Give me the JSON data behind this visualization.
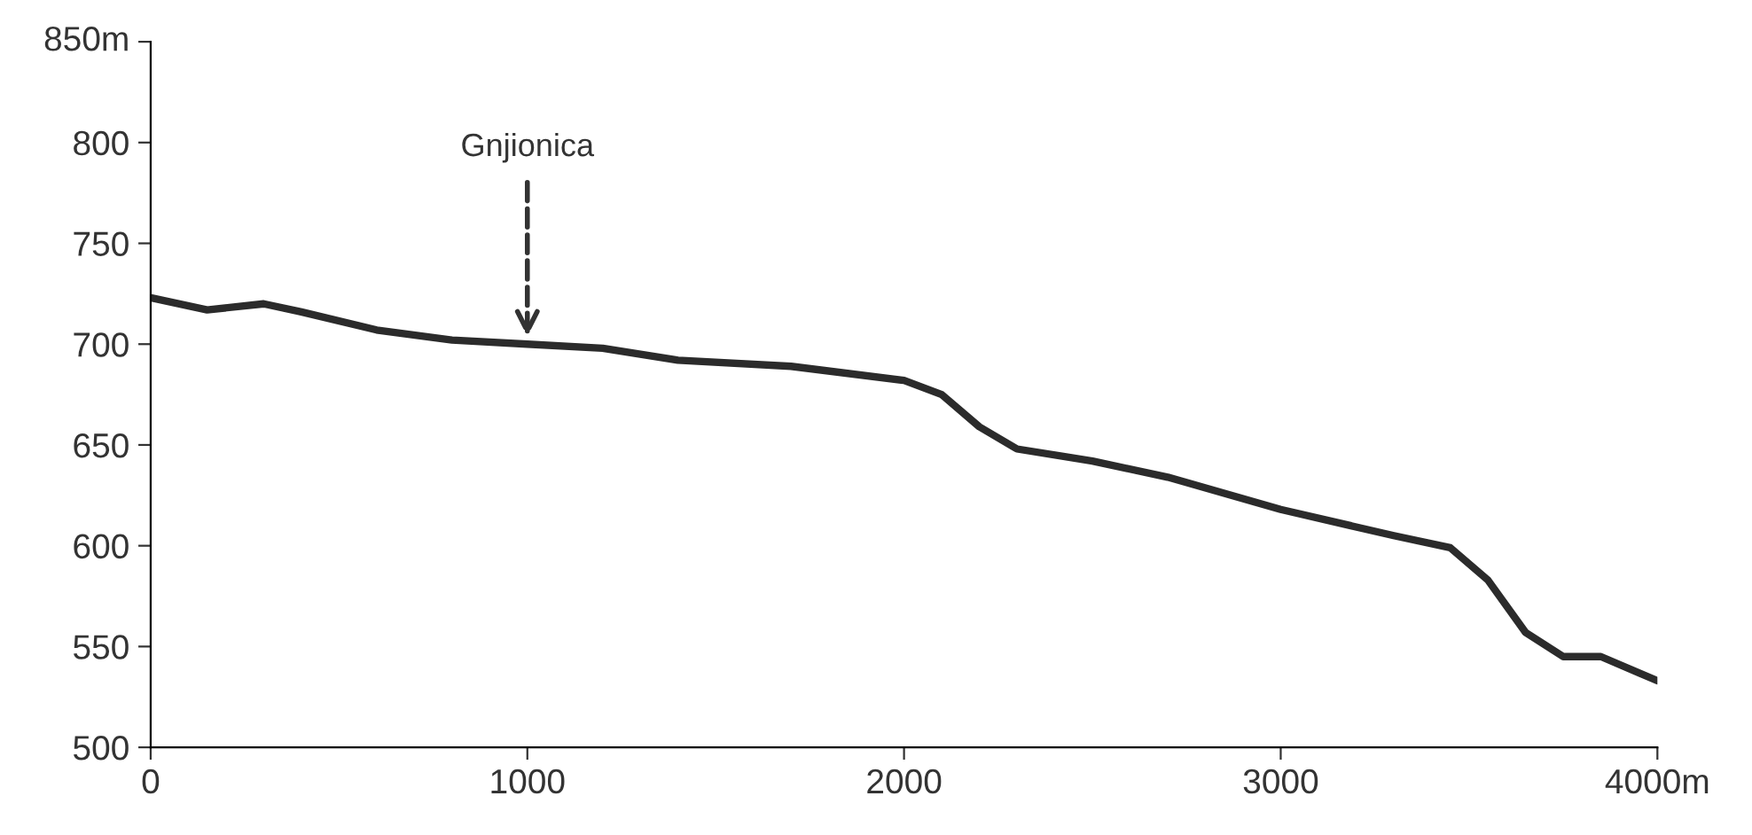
{
  "chart_data": {
    "type": "line",
    "x": [
      0,
      150,
      300,
      400,
      600,
      800,
      1000,
      1200,
      1400,
      1700,
      2000,
      2100,
      2200,
      2300,
      2500,
      2700,
      3000,
      3300,
      3450,
      3550,
      3650,
      3750,
      3850,
      4000
    ],
    "series": [
      {
        "color": "#2b2b2b",
        "values": [
          723,
          717,
          720,
          716,
          707,
          702,
          700,
          698,
          692,
          689,
          682,
          675,
          659,
          648,
          642,
          634,
          618,
          605,
          599,
          583,
          557,
          545,
          545,
          533
        ]
      }
    ],
    "xlim": [
      0,
      4000
    ],
    "ylim": [
      500,
      850
    ],
    "xticks": [
      0,
      1000,
      2000,
      3000,
      {
        "value": 4000,
        "label": "4000m"
      }
    ],
    "yticks": [
      500,
      550,
      600,
      650,
      700,
      750,
      800,
      {
        "value": 850,
        "label": "850m"
      }
    ],
    "grid": false,
    "legend": false,
    "marker": "none",
    "line_style": "solid",
    "annotations": [
      {
        "text": "Gnjionica",
        "x": 1000,
        "y": 700
      }
    ]
  }
}
